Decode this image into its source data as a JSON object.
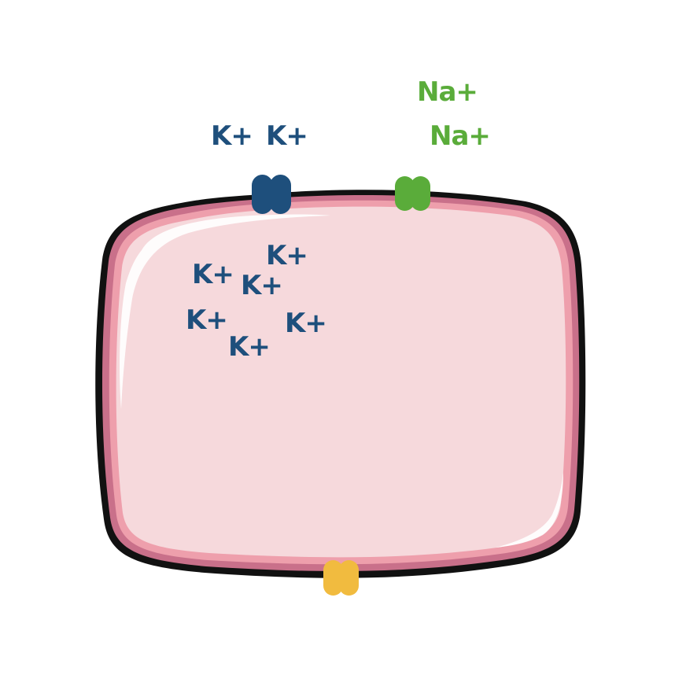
{
  "colors": {
    "potassium": "#1e4f7c",
    "sodium": "#5aac3a",
    "third_channel": "#f1bb3f",
    "cytoplasm": "#f6d9dc",
    "membrane_inner": "#ee9fac",
    "membrane_mid": "#c9708a",
    "membrane_outline": "#111111",
    "highlight": "#ffffff"
  },
  "channels": [
    {
      "name": "potassium-channel",
      "color_key": "potassium",
      "location": "top membrane, left"
    },
    {
      "name": "sodium-channel",
      "color_key": "sodium",
      "location": "top membrane, right"
    },
    {
      "name": "yellow-channel",
      "color_key": "third_channel",
      "location": "bottom membrane, center"
    }
  ],
  "ions": {
    "outside_potassium": [
      "K+",
      "K+"
    ],
    "outside_sodium": [
      "Na+",
      "Na+"
    ],
    "inside_potassium": [
      "K+",
      "K+",
      "K+",
      "K+",
      "K+",
      "K+"
    ]
  }
}
